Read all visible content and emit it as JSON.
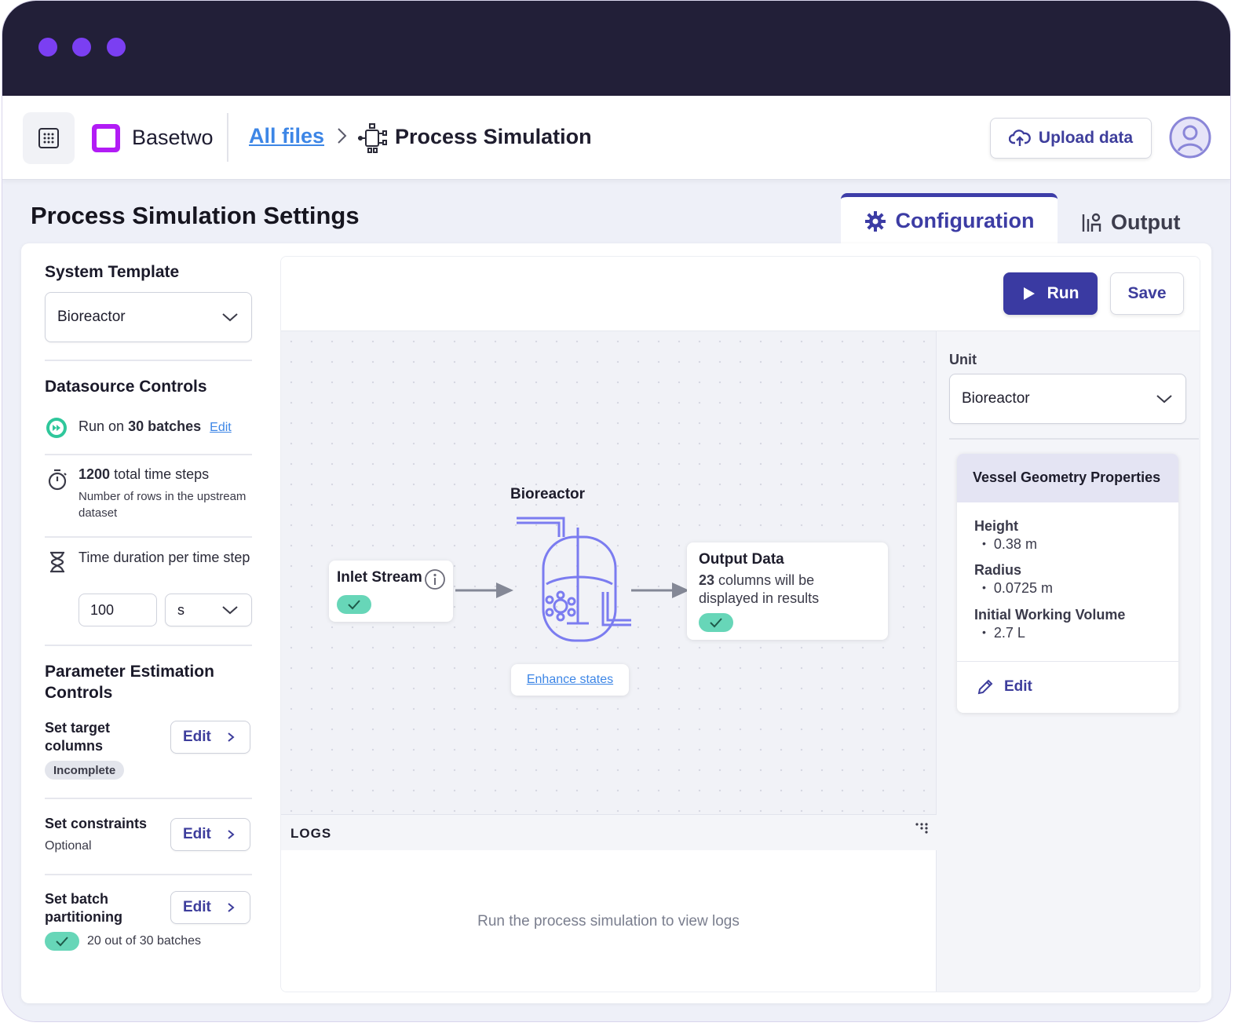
{
  "window": {
    "dot_color": "#7b3ff2"
  },
  "header": {
    "brand": "Basetwo",
    "breadcrumb_link": "All files",
    "breadcrumb_current": "Process Simulation",
    "upload_label": "Upload data"
  },
  "page": {
    "title": "Process Simulation Settings"
  },
  "tabs": {
    "configuration": "Configuration",
    "output": "Output"
  },
  "left": {
    "system_template": {
      "heading": "System Template",
      "value": "Bioreactor"
    },
    "datasource": {
      "heading": "Datasource Controls",
      "run_prefix": "Run on",
      "run_bold": "30 batches",
      "run_edit": "Edit",
      "steps_bold": "1200",
      "steps_text": "total time steps",
      "steps_note": "Number of rows in the upstream dataset",
      "duration_label": "Time duration per time step",
      "duration_value": "100",
      "duration_unit": "s"
    },
    "param": {
      "heading": "Parameter Estimation Controls",
      "target_label": "Set target columns",
      "target_badge": "Incomplete",
      "constraints_label": "Set constraints",
      "constraints_note": "Optional",
      "partition_label": "Set batch partitioning",
      "partition_note": "20 out of 30 batches",
      "edit_label": "Edit"
    }
  },
  "toolbar": {
    "run_label": "Run",
    "save_label": "Save"
  },
  "diagram": {
    "reactor_label": "Bioreactor",
    "inlet_label": "Inlet Stream",
    "output_title": "Output Data",
    "output_count": "23",
    "output_text_1": "columns will be",
    "output_text_2": "displayed in results",
    "enhance_label": "Enhance states"
  },
  "logs": {
    "title": "LOGS",
    "empty": "Run the process simulation to view logs"
  },
  "unit_panel": {
    "label": "Unit",
    "value": "Bioreactor",
    "card_title": "Vessel Geometry Properties",
    "properties": [
      {
        "name": "Height",
        "value": "0.38 m"
      },
      {
        "name": "Radius",
        "value": "0.0725 m"
      },
      {
        "name": "Initial Working Volume",
        "value": "2.7 L"
      }
    ],
    "edit_label": "Edit"
  },
  "colors": {
    "accent": "#3a3aa2",
    "link": "#3d86e6",
    "success": "#67d6b8",
    "brand": "#b21cf5"
  }
}
